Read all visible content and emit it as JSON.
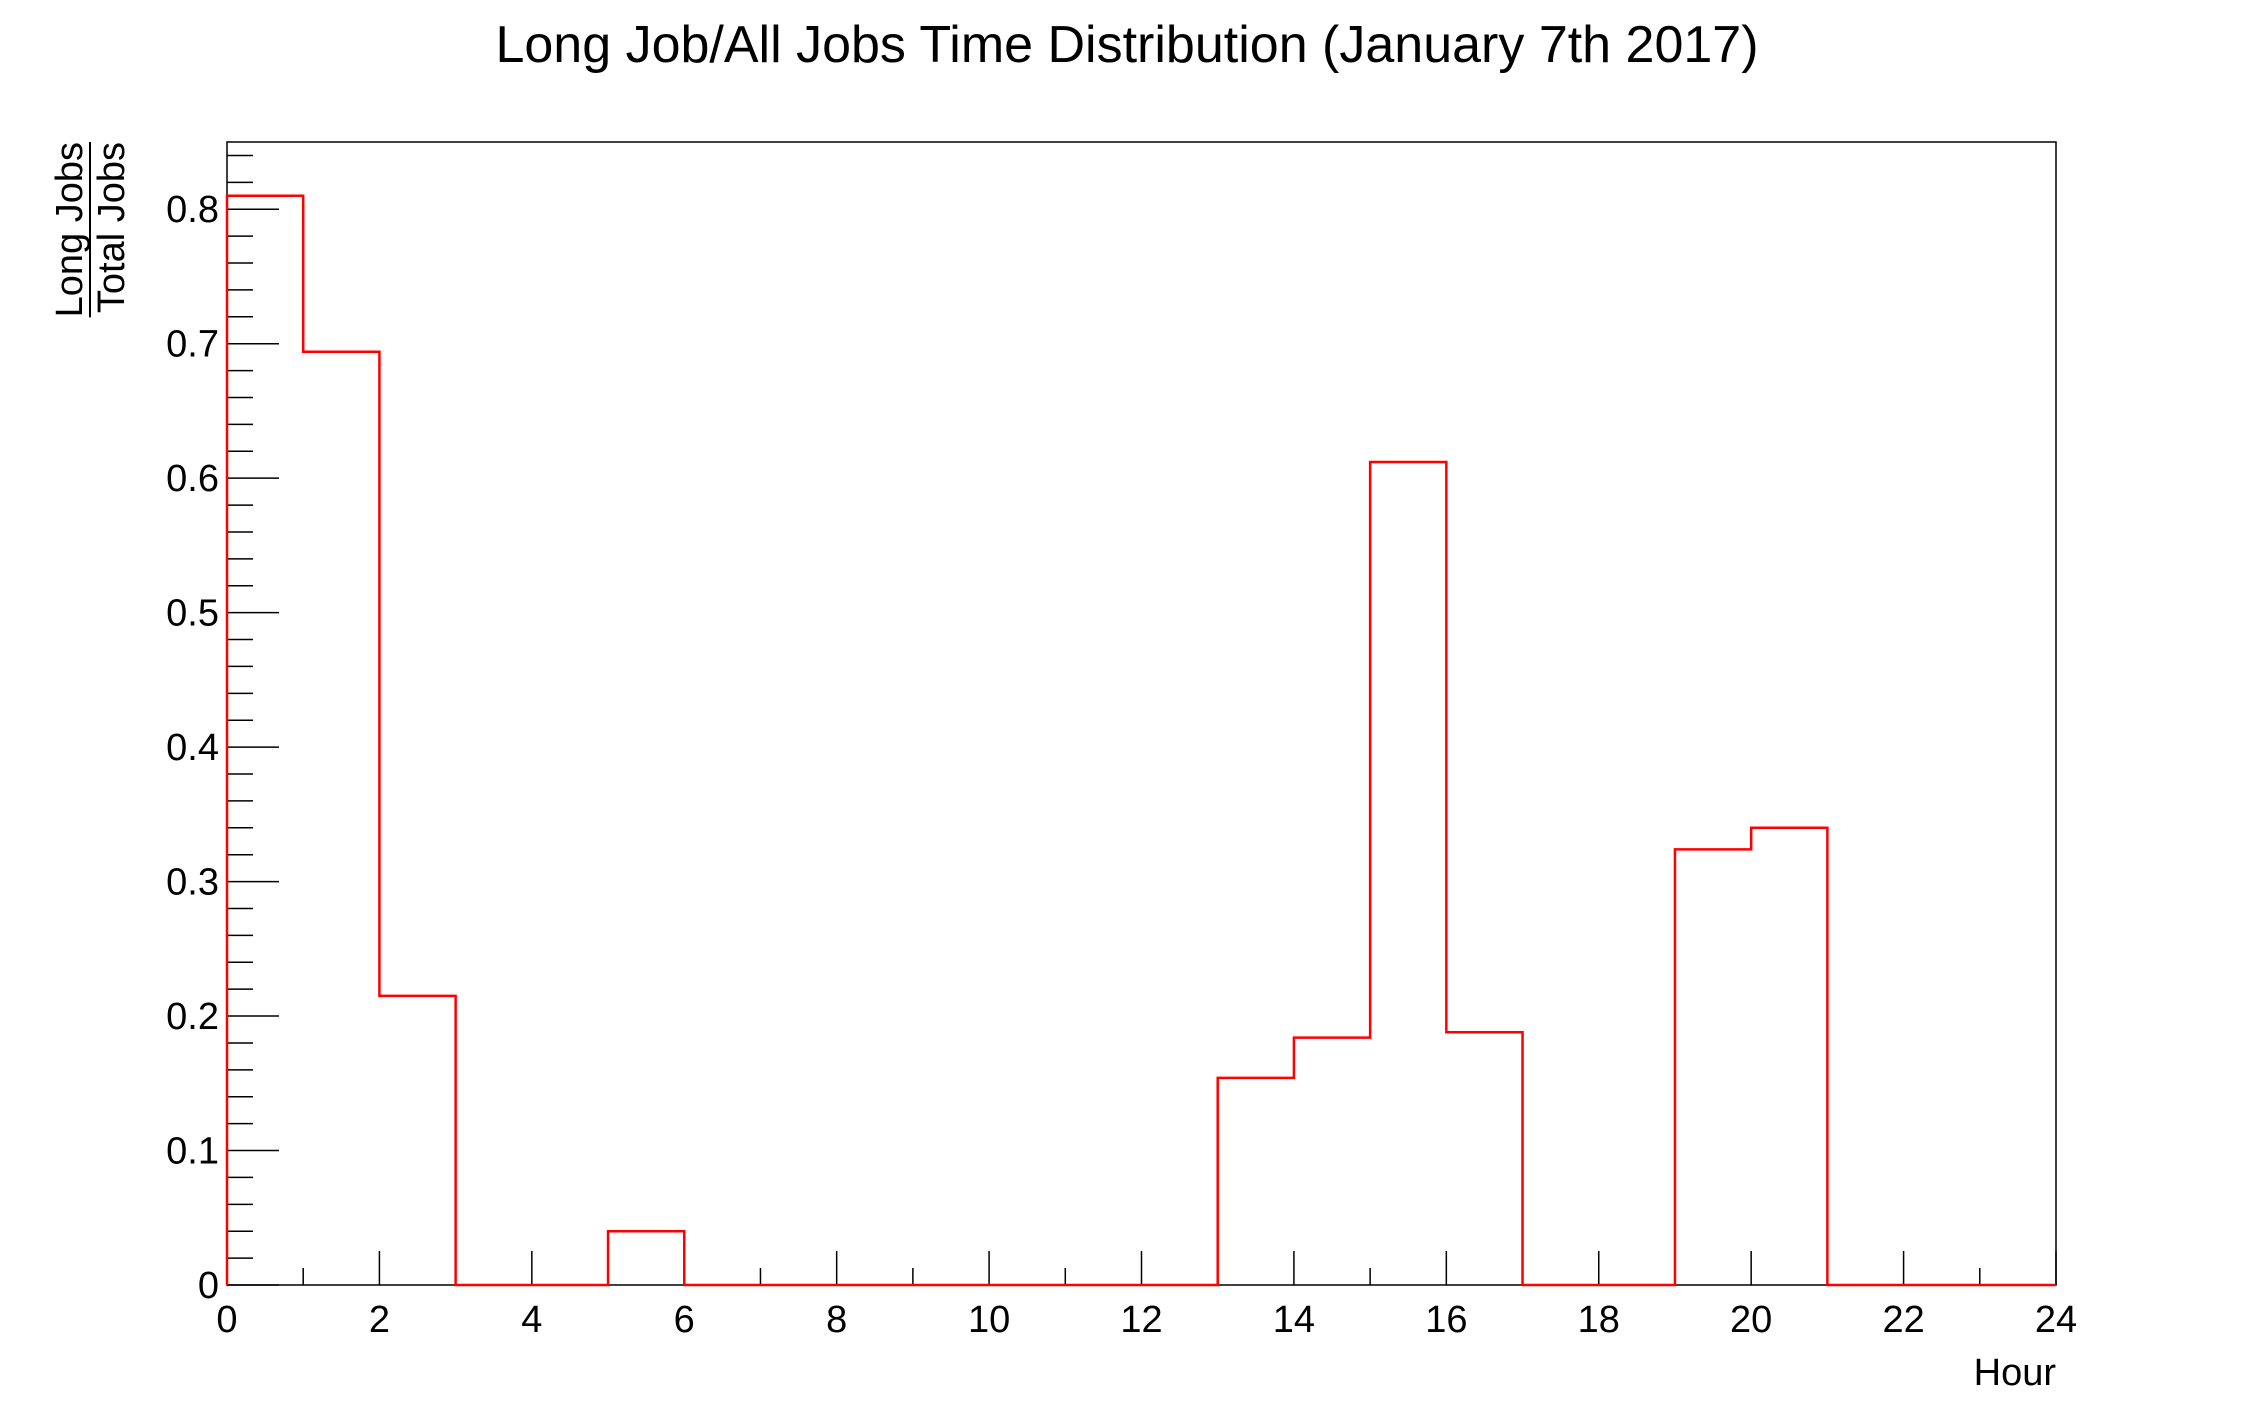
{
  "chart_data": {
    "type": "histogram",
    "title": "Long Job/All Jobs Time Distribution (January 7th 2017)",
    "xlabel": "Hour",
    "ylabel_numerator": "Long Jobs",
    "ylabel_denominator": "Total Jobs",
    "xlim": [
      0,
      24
    ],
    "ylim": [
      0,
      0.85
    ],
    "x_ticks": [
      0,
      2,
      4,
      6,
      8,
      10,
      12,
      14,
      16,
      18,
      20,
      22,
      24
    ],
    "y_ticks": [
      0,
      0.1,
      0.2,
      0.3,
      0.4,
      0.5,
      0.6,
      0.7,
      0.8
    ],
    "y_tick_labels": [
      "0",
      "0.1",
      "0.2",
      "0.3",
      "0.4",
      "0.5",
      "0.6",
      "0.7",
      "0.8"
    ],
    "bin_edges": [
      0,
      1,
      2,
      3,
      4,
      5,
      6,
      7,
      8,
      9,
      10,
      11,
      12,
      13,
      14,
      15,
      16,
      17,
      18,
      19,
      20,
      21,
      22,
      23,
      24
    ],
    "values": [
      0.81,
      0.694,
      0.215,
      0,
      0,
      0.04,
      0,
      0,
      0,
      0,
      0,
      0,
      0,
      0.154,
      0.184,
      0.612,
      0.188,
      0,
      0,
      0.324,
      0.34,
      0,
      0,
      0
    ],
    "grid": false,
    "line_color": "#ff0000"
  }
}
